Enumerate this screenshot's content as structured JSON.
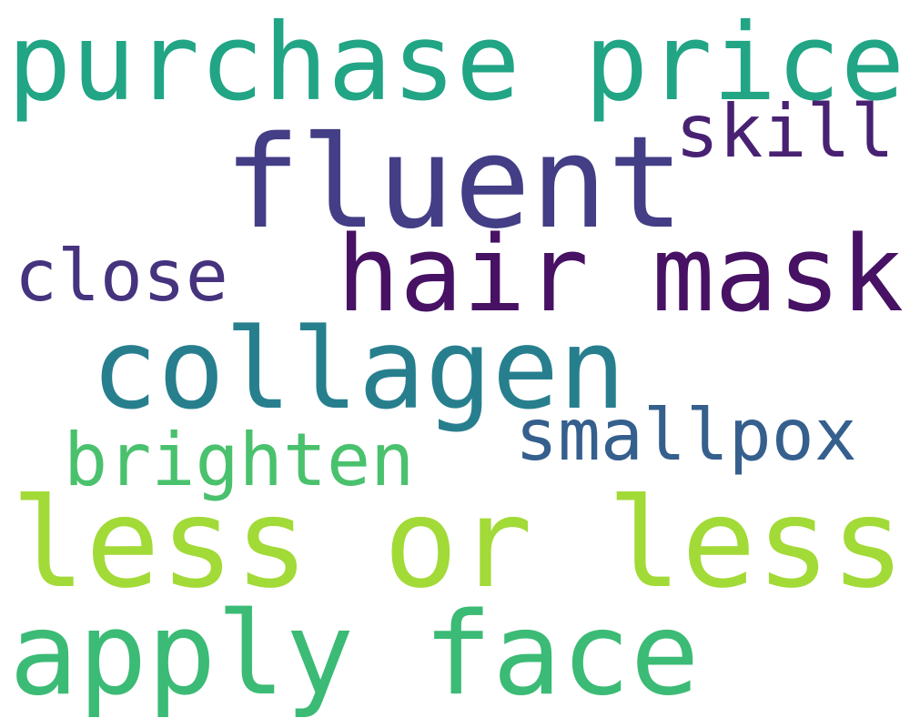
{
  "background_color": "#ffffff",
  "words": [
    {
      "text": "purchase price",
      "color": "#21a585"
    },
    {
      "text": "fluent",
      "color": "#433e85"
    },
    {
      "text": "skill",
      "color": "#482173"
    },
    {
      "text": "hair mask",
      "color": "#471164"
    },
    {
      "text": "close",
      "color": "#46337e"
    },
    {
      "text": "collagen",
      "color": "#277f8e"
    },
    {
      "text": "smallpox",
      "color": "#355f8d"
    },
    {
      "text": "brighten",
      "color": "#4ac16d"
    },
    {
      "text": "less or less",
      "color": "#a2da37"
    },
    {
      "text": "apply face",
      "color": "#3bbb75"
    }
  ]
}
